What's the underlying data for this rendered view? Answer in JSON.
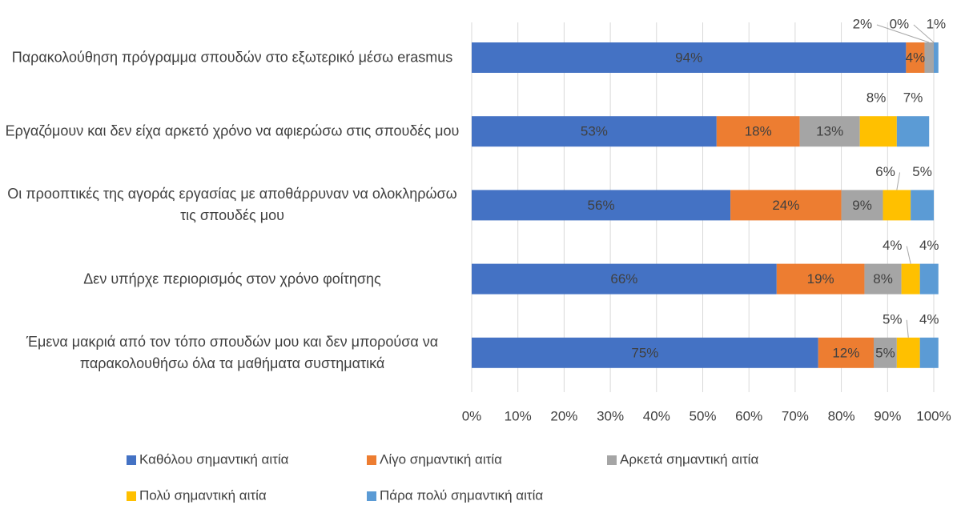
{
  "chart_data": {
    "type": "stacked_barh",
    "categories": [
      "Παρακολούθηση πρόγραμμα σπουδών στο εξωτερικό μέσω erasmus",
      "Εργαζόμουν και δεν είχα αρκετό χρόνο να αφιερώσω στις σπουδές μου",
      "Οι προοπτικές της αγοράς εργασίας με αποθάρρυναν να ολοκληρώσω τις σπουδές μου",
      "Δεν υπήρχε περιορισμός στον χρόνο φοίτησης",
      "Έμενα μακριά από τον τόπο σπουδών μου και δεν μπορούσα να παρακολουθήσω όλα τα μαθήματα συστηματικά"
    ],
    "series": [
      {
        "name": "Καθόλου σημαντική αιτία",
        "color": "#4472c4",
        "values": [
          94,
          53,
          56,
          66,
          75
        ],
        "value_labels": [
          "94%",
          "53%",
          "56%",
          "66%",
          "75%"
        ]
      },
      {
        "name": "Λίγο σημαντική αιτία",
        "color": "#ed7d31",
        "values": [
          4,
          18,
          24,
          19,
          12
        ],
        "value_labels": [
          "4%",
          "18%",
          "24%",
          "19%",
          "12%"
        ]
      },
      {
        "name": "Αρκετά σημαντική αιτία",
        "color": "#a5a5a5",
        "values": [
          2,
          13,
          9,
          8,
          5
        ],
        "value_labels": [
          "2%",
          "13%",
          "9%",
          "8%",
          "5%"
        ]
      },
      {
        "name": "Πολύ σημαντική αιτία",
        "color": "#ffc000",
        "values": [
          0,
          8,
          6,
          4,
          5
        ],
        "value_labels": [
          "0%",
          "8%",
          "6%",
          "4%",
          "5%"
        ]
      },
      {
        "name": "Πάρα πολύ σημαντική αιτία",
        "color": "#5b9bd5",
        "values": [
          1,
          7,
          5,
          4,
          4
        ],
        "value_labels": [
          "1%",
          "7%",
          "5%",
          "4%",
          "4%"
        ]
      }
    ],
    "xlim": [
      0,
      100
    ],
    "xticks": [
      {
        "value": 0,
        "label": "0%"
      },
      {
        "value": 10,
        "label": "10%"
      },
      {
        "value": 20,
        "label": "20%"
      },
      {
        "value": 30,
        "label": "30%"
      },
      {
        "value": 40,
        "label": "40%"
      },
      {
        "value": 50,
        "label": "50%"
      },
      {
        "value": 60,
        "label": "60%"
      },
      {
        "value": 70,
        "label": "70%"
      },
      {
        "value": 80,
        "label": "80%"
      },
      {
        "value": 90,
        "label": "90%"
      },
      {
        "value": 100,
        "label": "100%"
      }
    ],
    "grid": true,
    "legend": "bottom"
  }
}
